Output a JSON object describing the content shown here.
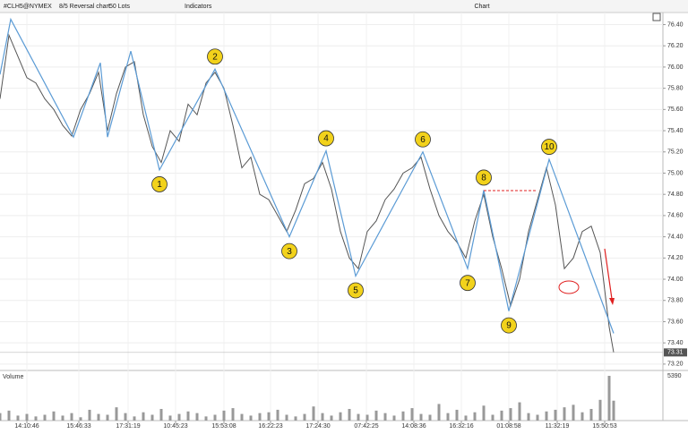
{
  "toolbar": {
    "symbol": "#CLH5@NYMEX",
    "chart_kind": "8/5 Reversal chart",
    "lots": "50 Lots",
    "indicators": "Indicators",
    "title": "Chart"
  },
  "chart_data": {
    "type": "line",
    "x": [
      0,
      10,
      20,
      30,
      40,
      50,
      60,
      70,
      80,
      90,
      100,
      110,
      120,
      130,
      140,
      150,
      160,
      170,
      180,
      190,
      200,
      210,
      220,
      230,
      240,
      250,
      260,
      270,
      280,
      290,
      300,
      310,
      320,
      330,
      340,
      350,
      360,
      370,
      380,
      390,
      400,
      410,
      420,
      430,
      440,
      450,
      460,
      470,
      480,
      490,
      500,
      510,
      520,
      530,
      540,
      550,
      560,
      570,
      580,
      590,
      600,
      610,
      620,
      630,
      640,
      650,
      660,
      670,
      680,
      685
    ],
    "series": [
      {
        "color": "#555555",
        "values": [
          75.7,
          76.3,
          76.1,
          75.9,
          75.85,
          75.7,
          75.6,
          75.45,
          75.35,
          75.6,
          75.75,
          75.95,
          75.4,
          75.75,
          76.0,
          76.05,
          75.55,
          75.25,
          75.1,
          75.4,
          75.3,
          75.65,
          75.55,
          75.85,
          75.95,
          75.8,
          75.45,
          75.05,
          75.15,
          74.8,
          74.75,
          74.6,
          74.45,
          74.65,
          74.9,
          74.95,
          75.1,
          74.85,
          74.45,
          74.2,
          74.1,
          74.45,
          74.55,
          74.75,
          74.85,
          75.0,
          75.05,
          75.15,
          74.85,
          74.6,
          74.45,
          74.35,
          74.2,
          74.55,
          74.8,
          74.4,
          74.1,
          73.75,
          74.0,
          74.45,
          74.75,
          75.05,
          74.7,
          74.1,
          74.2,
          74.45,
          74.5,
          74.25,
          73.55,
          73.31
        ]
      }
    ],
    "zigzag": {
      "color": "#5b9bd5",
      "x": [
        0,
        12,
        82,
        112,
        120,
        146,
        178,
        240,
        323,
        364,
        397,
        472,
        522,
        540,
        568,
        613,
        685
      ],
      "values": [
        75.93,
        76.45,
        75.34,
        76.04,
        75.34,
        76.15,
        75.03,
        75.98,
        74.4,
        75.21,
        74.03,
        75.2,
        74.1,
        74.84,
        73.7,
        75.13,
        73.49
      ],
      "point_labels": [
        null,
        null,
        null,
        null,
        null,
        null,
        "1",
        "2",
        "3",
        "4",
        "5",
        "6",
        "7",
        "8",
        "9",
        "10",
        null
      ]
    },
    "volume_label": "Volume",
    "volume": [
      900,
      1200,
      600,
      800,
      500,
      700,
      1100,
      600,
      900,
      400,
      1300,
      800,
      700,
      1600,
      900,
      500,
      1000,
      700,
      1400,
      600,
      800,
      1100,
      900,
      500,
      700,
      1200,
      1500,
      800,
      600,
      900,
      1000,
      1300,
      700,
      500,
      800,
      1700,
      900,
      600,
      1000,
      1400,
      800,
      700,
      1200,
      900,
      600,
      1100,
      1500,
      800,
      700,
      2000,
      900,
      1300,
      600,
      1000,
      1800,
      700,
      1200,
      1500,
      2200,
      900,
      700,
      1100,
      1300,
      1600,
      1900,
      1000,
      1400,
      2500,
      5390,
      2400
    ],
    "volume_lim": [
      0,
      5390
    ],
    "volume_ticks": [
      5390
    ],
    "last_price": 73.31,
    "xlim": [
      0,
      740
    ],
    "xticks": [
      {
        "value": 30,
        "label": "14:10:46"
      },
      {
        "value": 88,
        "label": "15:46:33"
      },
      {
        "value": 143,
        "label": "17:31:19"
      },
      {
        "value": 196,
        "label": "10:45:23"
      },
      {
        "value": 250,
        "label": "15:53:08"
      },
      {
        "value": 302,
        "label": "16:22:23"
      },
      {
        "value": 355,
        "label": "17:24:30"
      },
      {
        "value": 409,
        "label": "07:42:25"
      },
      {
        "value": 462,
        "label": "14:08:36"
      },
      {
        "value": 515,
        "label": "16:32:16"
      },
      {
        "value": 568,
        "label": "01:08:58"
      },
      {
        "value": 622,
        "label": "11:32:19"
      },
      {
        "value": 675,
        "label": "15:50:53"
      }
    ],
    "ylim": [
      73.14,
      76.48
    ],
    "yticks": [
      {
        "value": 73.2,
        "label": "73.20"
      },
      {
        "value": 73.4,
        "label": "73.40"
      },
      {
        "value": 73.6,
        "label": "73.60"
      },
      {
        "value": 73.8,
        "label": "73.80"
      },
      {
        "value": 74.0,
        "label": "74.00"
      },
      {
        "value": 74.2,
        "label": "74.20"
      },
      {
        "value": 74.4,
        "label": "74.40"
      },
      {
        "value": 74.6,
        "label": "74.60"
      },
      {
        "value": 74.8,
        "label": "74.80"
      },
      {
        "value": 75.0,
        "label": "75.00"
      },
      {
        "value": 75.2,
        "label": "75.20"
      },
      {
        "value": 75.4,
        "label": "75.40"
      },
      {
        "value": 75.6,
        "label": "75.60"
      },
      {
        "value": 75.8,
        "label": "75.80"
      },
      {
        "value": 76.0,
        "label": "76.00"
      },
      {
        "value": 76.2,
        "label": "76.20"
      },
      {
        "value": 76.4,
        "label": "76.40"
      }
    ],
    "grid": true
  }
}
